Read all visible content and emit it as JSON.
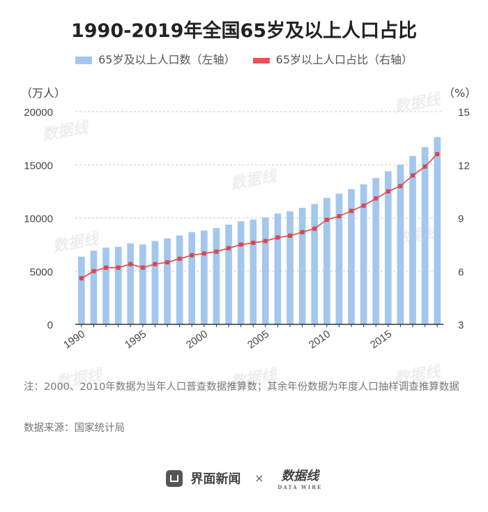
{
  "title": "1990-2019年全国65岁及以上人口占比",
  "legend": {
    "bar_label": "65岁及以上人口数（左轴）",
    "line_label": "65岁以上人口占比（右轴）"
  },
  "note": "注：2000、2010年数据为当年人口普查数据推算数；其余年份数据为年度人口抽样调查推算数据",
  "source": "数据来源：国家统计局",
  "footer": {
    "brand_left": "界面新闻",
    "times": "×",
    "brand_right": "数据线",
    "brand_right_sub": "DATA WIRE"
  },
  "watermark_text": "数据线",
  "colors": {
    "bar": "#a3c7ee",
    "line": "#e0555a",
    "marker": "#d8484d",
    "grid": "#cccccc"
  },
  "chart_data": {
    "type": "bar",
    "x": [
      1990,
      1991,
      1992,
      1993,
      1994,
      1995,
      1996,
      1997,
      1998,
      1999,
      2000,
      2001,
      2002,
      2003,
      2004,
      2005,
      2006,
      2007,
      2008,
      2009,
      2010,
      2011,
      2012,
      2013,
      2014,
      2015,
      2016,
      2017,
      2018,
      2019
    ],
    "xticks": [
      "1990",
      "1995",
      "2000",
      "2005",
      "2010",
      "2015"
    ],
    "series": [
      {
        "name": "65岁及以上人口数（左轴）",
        "type": "bar",
        "axis": "left",
        "values": [
          6368,
          6938,
          7218,
          7289,
          7622,
          7510,
          7833,
          8085,
          8359,
          8679,
          8821,
          9062,
          9377,
          9692,
          9857,
          10055,
          10419,
          10636,
          10956,
          11307,
          11894,
          12288,
          12714,
          13161,
          13755,
          14386,
          15003,
          15831,
          16658,
          17603
        ]
      },
      {
        "name": "65岁以上人口占比（右轴）",
        "type": "line",
        "axis": "right",
        "values": [
          5.6,
          6.0,
          6.2,
          6.2,
          6.4,
          6.2,
          6.4,
          6.5,
          6.7,
          6.9,
          7.0,
          7.1,
          7.3,
          7.5,
          7.6,
          7.7,
          7.9,
          8.0,
          8.2,
          8.4,
          8.9,
          9.1,
          9.4,
          9.7,
          10.1,
          10.5,
          10.8,
          11.4,
          11.9,
          12.6
        ]
      }
    ],
    "y_left": {
      "label": "（万人）",
      "ylim": [
        0,
        20000
      ],
      "ticks": [
        "0",
        "5000",
        "10000",
        "15000",
        "20000"
      ]
    },
    "y_right": {
      "label": "（%）",
      "ylim": [
        3,
        15
      ],
      "ticks": [
        "3",
        "6",
        "9",
        "12",
        "15"
      ]
    },
    "grid": true,
    "legend_position": "top"
  }
}
